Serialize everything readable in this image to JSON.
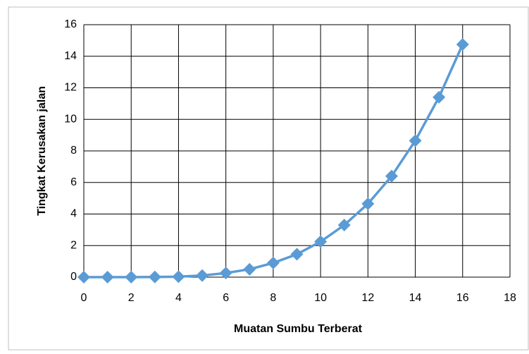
{
  "chart_data": {
    "type": "line",
    "x_label": "Muatan Sumbu Terberat",
    "y_label": "Tingkat Kerusakan jalan",
    "x": [
      0,
      1,
      2,
      3,
      4,
      5,
      6,
      7,
      8,
      9,
      10,
      11,
      12,
      13,
      14,
      15,
      16
    ],
    "series": [
      {
        "color": "#5b9bd5",
        "values": [
          0,
          0,
          0,
          0.01,
          0.03,
          0.1,
          0.26,
          0.5,
          0.9,
          1.45,
          2.25,
          3.3,
          4.65,
          6.4,
          8.65,
          11.4,
          14.75
        ]
      }
    ],
    "xlim": [
      0,
      18
    ],
    "xticks": [
      0,
      2,
      4,
      6,
      8,
      10,
      12,
      14,
      16,
      18
    ],
    "ylim": [
      0,
      16
    ],
    "yticks": [
      0,
      2,
      4,
      6,
      8,
      10,
      12,
      14,
      16
    ],
    "grid": true
  }
}
